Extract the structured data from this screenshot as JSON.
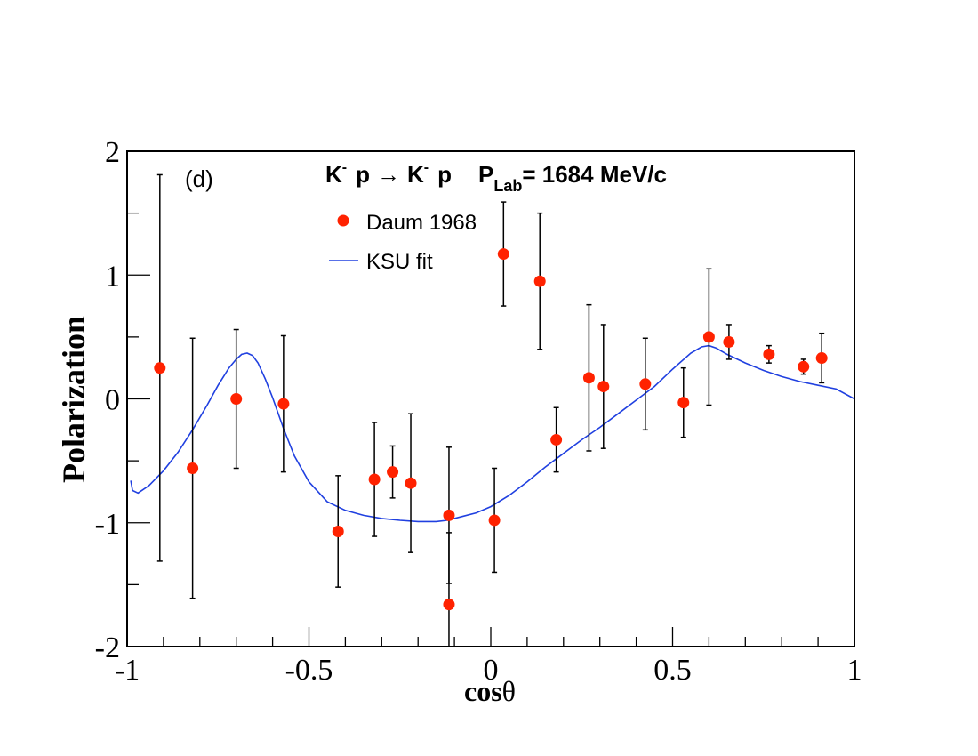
{
  "chart_data": {
    "type": "scatter",
    "panel_label": "(d)",
    "title": {
      "particle_1": "K",
      "particle_1_charge": "-",
      "particle_2": "p",
      "arrow": "→",
      "particle_3": "K",
      "particle_3_charge": "-",
      "particle_4": "p",
      "momentum_symbol": "P",
      "momentum_subscript": "Lab",
      "momentum_value": "= 1684 MeV/c"
    },
    "xlabel": {
      "prefix": "cos",
      "symbol": "θ"
    },
    "ylabel": "Polarization",
    "xlim": [
      -1,
      1
    ],
    "ylim": [
      -2,
      2
    ],
    "x_ticks": [
      {
        "value": -1,
        "label": "-1"
      },
      {
        "value": -0.5,
        "label": "-0.5"
      },
      {
        "value": 0,
        "label": "0"
      },
      {
        "value": 0.5,
        "label": "0.5"
      },
      {
        "value": 1,
        "label": "1"
      }
    ],
    "y_ticks": [
      {
        "value": -2,
        "label": "-2"
      },
      {
        "value": -1,
        "label": "-1"
      },
      {
        "value": 0,
        "label": "0"
      },
      {
        "value": 1,
        "label": "1"
      },
      {
        "value": 2,
        "label": "2"
      }
    ],
    "x_minor_step": 0.1,
    "y_minor_step": 0.5,
    "grid": false,
    "legend": {
      "placement": "top-center",
      "entries": [
        {
          "label": "Daum 1968",
          "kind": "marker",
          "color": "#ff2200"
        },
        {
          "label": "KSU fit",
          "kind": "line",
          "color": "#2040e0"
        }
      ]
    },
    "series": [
      {
        "name": "Daum 1968",
        "kind": "points",
        "color": "#ff2200",
        "points": [
          {
            "x": -0.91,
            "y": 0.25,
            "err": 1.56
          },
          {
            "x": -0.82,
            "y": -0.56,
            "err": 1.05
          },
          {
            "x": -0.7,
            "y": 0.0,
            "err": 0.56
          },
          {
            "x": -0.57,
            "y": -0.04,
            "err": 0.55
          },
          {
            "x": -0.42,
            "y": -1.07,
            "err": 0.45
          },
          {
            "x": -0.32,
            "y": -0.65,
            "err": 0.46
          },
          {
            "x": -0.27,
            "y": -0.59,
            "err": 0.21
          },
          {
            "x": -0.22,
            "y": -0.68,
            "err": 0.56
          },
          {
            "x": -0.115,
            "y": -0.94,
            "err": 0.55
          },
          {
            "x": -0.115,
            "y": -1.66,
            "err": 0.58
          },
          {
            "x": 0.01,
            "y": -0.98,
            "err": 0.42
          },
          {
            "x": 0.035,
            "y": 1.17,
            "err": 0.42
          },
          {
            "x": 0.135,
            "y": 0.95,
            "err": 0.55
          },
          {
            "x": 0.18,
            "y": -0.33,
            "err": 0.26
          },
          {
            "x": 0.27,
            "y": 0.17,
            "err": 0.59
          },
          {
            "x": 0.31,
            "y": 0.1,
            "err": 0.5
          },
          {
            "x": 0.425,
            "y": 0.12,
            "err": 0.37
          },
          {
            "x": 0.53,
            "y": -0.03,
            "err": 0.28
          },
          {
            "x": 0.6,
            "y": 0.5,
            "err": 0.55
          },
          {
            "x": 0.655,
            "y": 0.46,
            "err": 0.14
          },
          {
            "x": 0.765,
            "y": 0.36,
            "err": 0.07
          },
          {
            "x": 0.86,
            "y": 0.26,
            "err": 0.06
          },
          {
            "x": 0.91,
            "y": 0.33,
            "err": 0.2
          }
        ]
      },
      {
        "name": "KSU fit",
        "kind": "line",
        "color": "#2040e0",
        "x": [
          -0.99,
          -0.985,
          -0.97,
          -0.94,
          -0.9,
          -0.86,
          -0.82,
          -0.78,
          -0.75,
          -0.72,
          -0.7,
          -0.685,
          -0.67,
          -0.655,
          -0.64,
          -0.62,
          -0.6,
          -0.57,
          -0.54,
          -0.5,
          -0.45,
          -0.4,
          -0.35,
          -0.3,
          -0.25,
          -0.2,
          -0.15,
          -0.12,
          -0.08,
          -0.04,
          0.0,
          0.05,
          0.1,
          0.15,
          0.2,
          0.25,
          0.3,
          0.35,
          0.4,
          0.45,
          0.5,
          0.55,
          0.58,
          0.6,
          0.62,
          0.65,
          0.7,
          0.75,
          0.8,
          0.85,
          0.9,
          0.95,
          1.0
        ],
        "y": [
          -0.66,
          -0.74,
          -0.76,
          -0.7,
          -0.58,
          -0.43,
          -0.25,
          -0.05,
          0.11,
          0.25,
          0.32,
          0.36,
          0.37,
          0.35,
          0.29,
          0.16,
          0.01,
          -0.24,
          -0.46,
          -0.67,
          -0.83,
          -0.9,
          -0.94,
          -0.965,
          -0.98,
          -0.99,
          -0.99,
          -0.98,
          -0.95,
          -0.92,
          -0.87,
          -0.78,
          -0.67,
          -0.55,
          -0.44,
          -0.33,
          -0.23,
          -0.12,
          -0.01,
          0.1,
          0.24,
          0.37,
          0.42,
          0.43,
          0.41,
          0.36,
          0.29,
          0.23,
          0.18,
          0.14,
          0.11,
          0.08,
          0.0
        ]
      }
    ]
  }
}
